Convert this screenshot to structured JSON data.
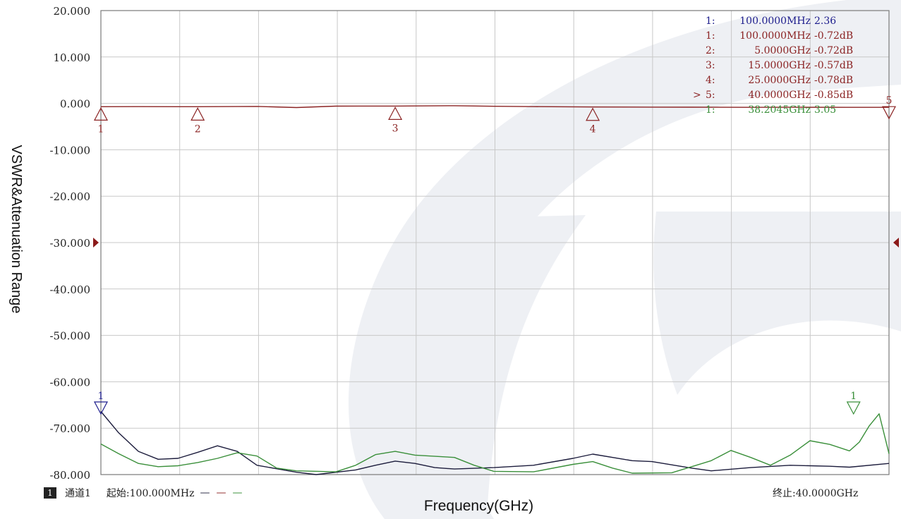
{
  "chart_data": {
    "type": "line",
    "title": "",
    "xlabel": "Frequency(GHz)",
    "ylabel": "VSWR&Attenuation Range",
    "xlim": [
      0.1,
      40.0
    ],
    "ylim": [
      -80,
      20
    ],
    "x_divisions": 10,
    "ytick_labels": [
      "20.000",
      "10.000",
      "0.000",
      "-10.000",
      "-20.000",
      "-30.000",
      "-40.000",
      "-50.000",
      "-60.000",
      "-70.000",
      "-80.000"
    ],
    "ytick_values": [
      20,
      10,
      0,
      -10,
      -20,
      -30,
      -40,
      -50,
      -60,
      -70,
      -80
    ],
    "reference_level": -30,
    "grid": true,
    "series": [
      {
        "color": "#8b2323",
        "points": [
          [
            0.1,
            -0.72
          ],
          [
            2,
            -0.7
          ],
          [
            5,
            -0.72
          ],
          [
            8,
            -0.65
          ],
          [
            10,
            -0.9
          ],
          [
            12,
            -0.6
          ],
          [
            15,
            -0.57
          ],
          [
            18,
            -0.5
          ],
          [
            20,
            -0.62
          ],
          [
            22,
            -0.7
          ],
          [
            25,
            -0.78
          ],
          [
            28,
            -0.8
          ],
          [
            30,
            -0.82
          ],
          [
            33,
            -0.85
          ],
          [
            35,
            -0.84
          ],
          [
            38,
            -0.85
          ],
          [
            40,
            -0.85
          ]
        ]
      },
      {
        "color": "#1c1c3c",
        "points": [
          [
            0.1,
            -66.4
          ],
          [
            1,
            -71
          ],
          [
            2,
            -75
          ],
          [
            3,
            -76.7
          ],
          [
            4,
            -76.5
          ],
          [
            5,
            -75.2
          ],
          [
            6,
            -73.8
          ],
          [
            7,
            -75
          ],
          [
            8,
            -78
          ],
          [
            10,
            -79.5
          ],
          [
            11,
            -80
          ],
          [
            13,
            -79
          ],
          [
            14,
            -78
          ],
          [
            15,
            -77.1
          ],
          [
            16,
            -77.6
          ],
          [
            17,
            -78.5
          ],
          [
            18,
            -78.8
          ],
          [
            20,
            -78.5
          ],
          [
            22,
            -78
          ],
          [
            24,
            -76.5
          ],
          [
            25,
            -75.6
          ],
          [
            27,
            -77
          ],
          [
            28,
            -77.2
          ],
          [
            30,
            -78.6
          ],
          [
            31,
            -79.2
          ],
          [
            33,
            -78.5
          ],
          [
            35,
            -78
          ],
          [
            37,
            -78.2
          ],
          [
            38,
            -78.4
          ],
          [
            40,
            -77.6
          ]
        ]
      },
      {
        "color": "#3a8f3a",
        "points": [
          [
            0.1,
            -73.4
          ],
          [
            1,
            -75.5
          ],
          [
            2,
            -77.6
          ],
          [
            3,
            -78.3
          ],
          [
            4,
            -78.1
          ],
          [
            5,
            -77.4
          ],
          [
            6,
            -76.5
          ],
          [
            7,
            -75.3
          ],
          [
            8,
            -76
          ],
          [
            9,
            -78.6
          ],
          [
            10,
            -79.2
          ],
          [
            12,
            -79.4
          ],
          [
            13,
            -78
          ],
          [
            14,
            -75.7
          ],
          [
            15,
            -75
          ],
          [
            16,
            -75.8
          ],
          [
            18,
            -76.3
          ],
          [
            19,
            -78
          ],
          [
            20,
            -79.3
          ],
          [
            22,
            -79.4
          ],
          [
            24,
            -77.8
          ],
          [
            25,
            -77.2
          ],
          [
            26,
            -78.6
          ],
          [
            27,
            -79.7
          ],
          [
            29,
            -79.6
          ],
          [
            31,
            -77
          ],
          [
            32,
            -74.8
          ],
          [
            33,
            -76.3
          ],
          [
            34,
            -78
          ],
          [
            35,
            -75.8
          ],
          [
            36,
            -72.7
          ],
          [
            37,
            -73.5
          ],
          [
            38,
            -74.9
          ],
          [
            38.5,
            -73
          ],
          [
            39,
            -69.5
          ],
          [
            39.5,
            -66.9
          ],
          [
            40,
            -75.5
          ]
        ]
      }
    ],
    "markers": [
      {
        "id": "1",
        "x": 0.1,
        "y": -0.72,
        "color": "#8b2323",
        "orientation": "up"
      },
      {
        "id": "2",
        "x": 5.0,
        "y": -0.72,
        "color": "#8b2323",
        "orientation": "up"
      },
      {
        "id": "3",
        "x": 15.0,
        "y": -0.57,
        "color": "#8b2323",
        "orientation": "up"
      },
      {
        "id": "4",
        "x": 25.0,
        "y": -0.78,
        "color": "#8b2323",
        "orientation": "up"
      },
      {
        "id": "5",
        "x": 40.0,
        "y": -0.85,
        "color": "#8b2323",
        "orientation": "down"
      },
      {
        "id": "1",
        "x": 0.1,
        "y": -64.5,
        "color": "#1c1c8c",
        "orientation": "down"
      },
      {
        "id": "1",
        "x": 38.2045,
        "y": -64.5,
        "color": "#3a8f3a",
        "orientation": "down"
      }
    ],
    "marker_table": [
      {
        "index": "1:",
        "freq": "100.0000MHz",
        "value": "2.36",
        "color": "#1c1c8c",
        "active": false
      },
      {
        "index": "1:",
        "freq": "100.0000MHz",
        "value": "-0.72dB",
        "color": "#8b2323",
        "active": false
      },
      {
        "index": "2:",
        "freq": "5.0000GHz",
        "value": "-0.72dB",
        "color": "#8b2323",
        "active": false
      },
      {
        "index": "3:",
        "freq": "15.0000GHz",
        "value": "-0.57dB",
        "color": "#8b2323",
        "active": false
      },
      {
        "index": "4:",
        "freq": "25.0000GHz",
        "value": "-0.78dB",
        "color": "#8b2323",
        "active": false
      },
      {
        "index": "5:",
        "freq": "40.0000GHz",
        "value": "-0.85dB",
        "color": "#8b2323",
        "active": true
      },
      {
        "index": "1:",
        "freq": "38.2045GHz",
        "value": "3.05",
        "color": "#3a8f3a",
        "active": false
      }
    ]
  },
  "footer": {
    "channel_number": "1",
    "channel_label": "通道1",
    "start": "起始:100.000MHz",
    "dash_symbol": "—",
    "stop": "终止:40.0000GHz"
  },
  "colors": {
    "grid": "#c8c8c8",
    "frame": "#7a7a7a",
    "reference_arrow": "#8b1a1a",
    "watermark": "#eef0f4"
  }
}
